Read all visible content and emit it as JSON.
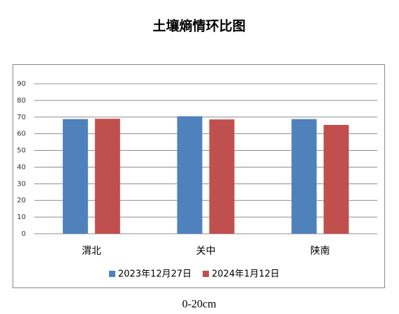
{
  "chart_data": {
    "type": "bar",
    "title": "土壤熵情环比图",
    "subtitle": "0-20cm",
    "categories": [
      "渭北",
      "关中",
      "陕南"
    ],
    "series": [
      {
        "name": "2023年12月27日",
        "color": "#4f81bd",
        "values": [
          68.8,
          70.5,
          68.8
        ]
      },
      {
        "name": "2024年1月12日",
        "color": "#c0504d",
        "values": [
          69,
          68.6,
          65.3
        ]
      }
    ],
    "ylim": [
      0,
      90
    ],
    "yticks": [
      0,
      10,
      20,
      30,
      40,
      50,
      60,
      70,
      80,
      90
    ],
    "grid": true,
    "legend": "bottom"
  }
}
